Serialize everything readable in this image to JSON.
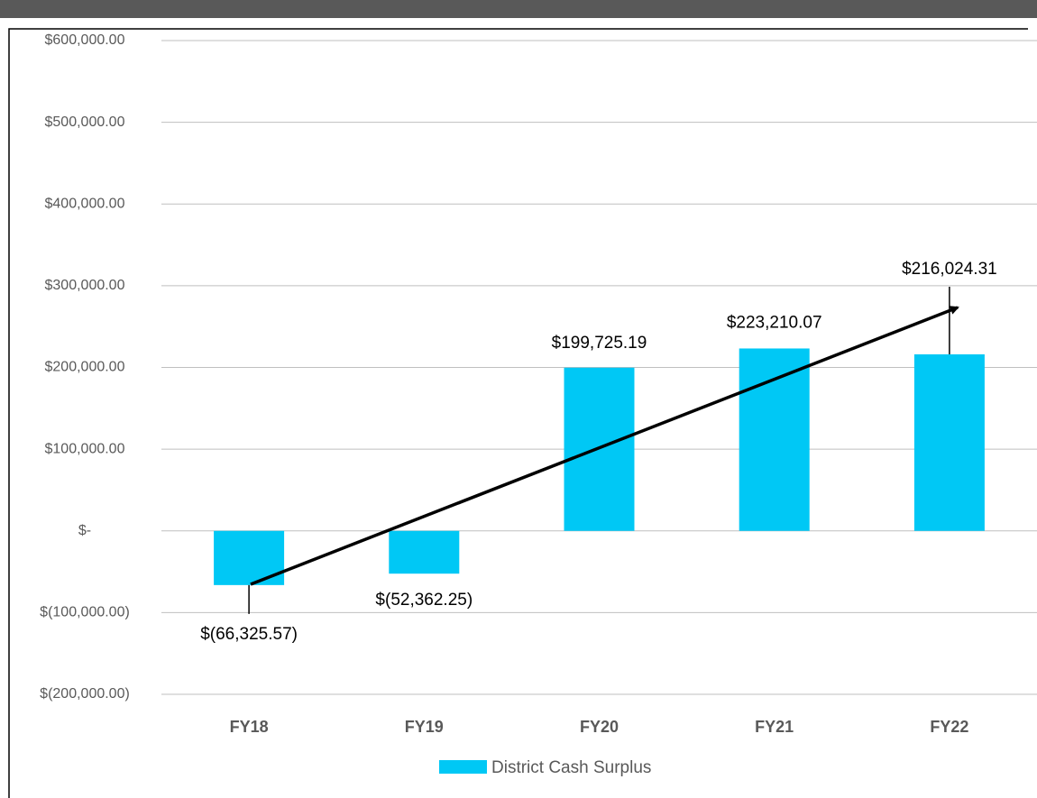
{
  "chart_data": {
    "type": "bar",
    "categories": [
      "FY18",
      "FY19",
      "FY20",
      "FY21",
      "FY22"
    ],
    "series": [
      {
        "name": "District Cash Surplus",
        "color": "#00c8f5",
        "values": [
          -66325.57,
          -52362.25,
          199725.19,
          223210.07,
          216024.31
        ],
        "value_labels": [
          "$(66,325.57)",
          "$(52,362.25)",
          "$199,725.19",
          "$223,210.07",
          "$216,024.31"
        ]
      }
    ],
    "ylim": [
      -200000,
      600000
    ],
    "yticks": [
      {
        "value": -200000,
        "label": "$(200,000.00)"
      },
      {
        "value": -100000,
        "label": "$(100,000.00)"
      },
      {
        "value": 0,
        "label": "$-"
      },
      {
        "value": 100000,
        "label": "$100,000.00"
      },
      {
        "value": 200000,
        "label": "$200,000.00"
      },
      {
        "value": 300000,
        "label": "$300,000.00"
      },
      {
        "value": 400000,
        "label": "$400,000.00"
      },
      {
        "value": 500000,
        "label": "$500,000.00"
      },
      {
        "value": 600000,
        "label": "$600,000.00"
      }
    ],
    "grid": true,
    "legend": "bottom"
  }
}
